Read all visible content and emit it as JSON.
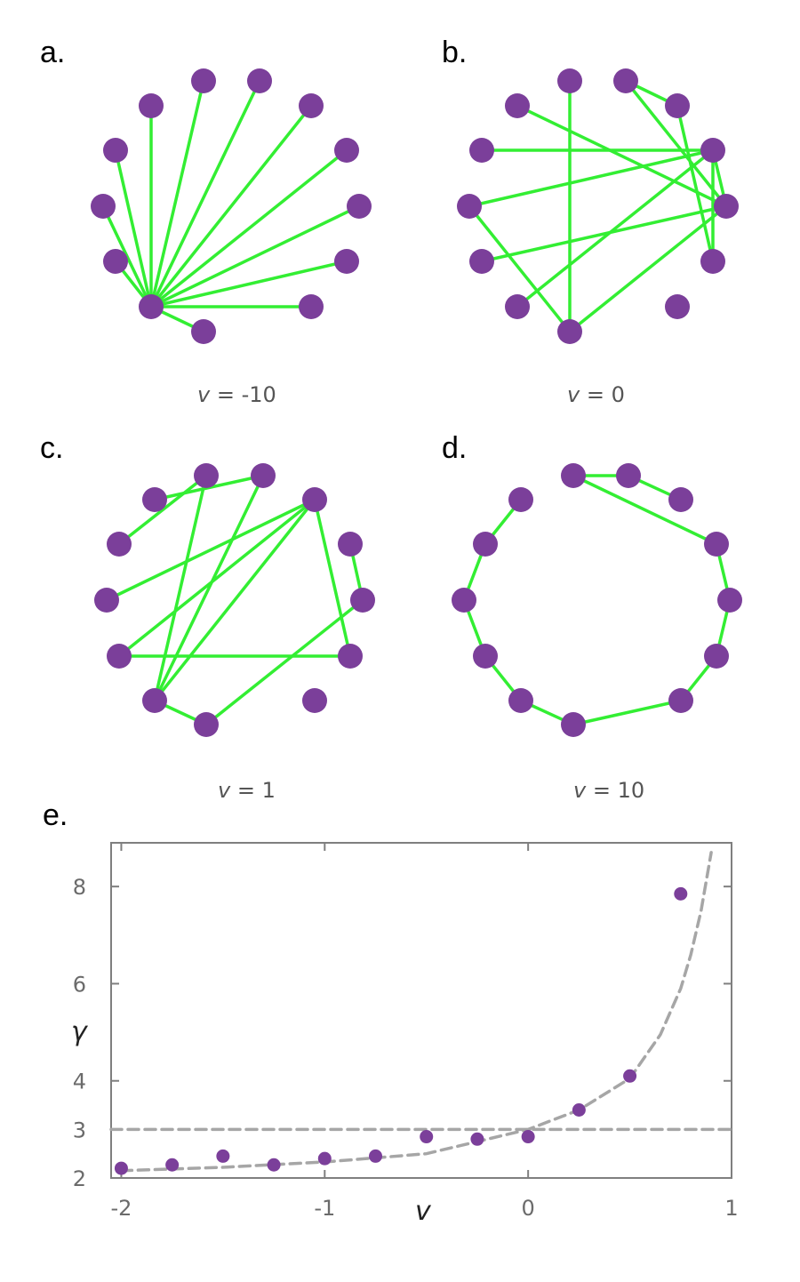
{
  "colors": {
    "node": "#7b3f9a",
    "edge": "#33ee33",
    "fit": "#a6a6a6",
    "axis": "#7f7f7f"
  },
  "panels": [
    {
      "letter": "a.",
      "v_label": "v",
      "v_value": "= -10",
      "edges": [
        [
          0,
          1
        ],
        [
          0,
          2
        ],
        [
          0,
          3
        ],
        [
          0,
          4
        ],
        [
          0,
          5
        ],
        [
          0,
          6
        ],
        [
          0,
          7
        ],
        [
          0,
          8
        ],
        [
          0,
          9
        ],
        [
          0,
          10
        ],
        [
          0,
          11
        ],
        [
          0,
          12
        ]
      ]
    },
    {
      "letter": "b.",
      "v_label": "v",
      "v_value": "= 0",
      "edges": [
        [
          10,
          2
        ],
        [
          10,
          11
        ],
        [
          10,
          12
        ],
        [
          11,
          3
        ],
        [
          11,
          6
        ],
        [
          11,
          8
        ],
        [
          11,
          1
        ],
        [
          10,
          5
        ],
        [
          10,
          4
        ],
        [
          1,
          4
        ],
        [
          1,
          7
        ],
        [
          12,
          9
        ],
        [
          9,
          8
        ]
      ]
    },
    {
      "letter": "c.",
      "v_label": "v",
      "v_value": "= 1",
      "edges": [
        [
          11,
          12
        ],
        [
          11,
          5
        ],
        [
          11,
          6
        ],
        [
          11,
          4
        ],
        [
          5,
          7
        ],
        [
          4,
          1
        ],
        [
          4,
          10
        ],
        [
          4,
          9
        ],
        [
          6,
          8
        ],
        [
          12,
          2
        ],
        [
          2,
          3
        ],
        [
          10,
          1
        ]
      ]
    },
    {
      "letter": "d.",
      "v_label": "v",
      "v_value": "= 10",
      "edges": [
        [
          2,
          1
        ],
        [
          1,
          0
        ],
        [
          0,
          3
        ],
        [
          3,
          4
        ],
        [
          4,
          5
        ],
        [
          5,
          6
        ],
        [
          6,
          7
        ],
        [
          7,
          8
        ],
        [
          8,
          9
        ],
        [
          9,
          10
        ],
        [
          10,
          11
        ],
        [
          11,
          12
        ]
      ]
    }
  ],
  "chart_data": {
    "type": "scatter",
    "panel_letter": "e.",
    "xlabel": "v",
    "ylabel": "γ",
    "xlim": [
      -2.05,
      1.0
    ],
    "ylim": [
      2.0,
      8.9
    ],
    "xticks": [
      -2,
      -1,
      0,
      1
    ],
    "xtick_labels": [
      "-2",
      "-1",
      "0",
      "1"
    ],
    "yticks": [
      2,
      3,
      4,
      6,
      8
    ],
    "ytick_labels": [
      "2",
      "3",
      "4",
      "6",
      "8"
    ],
    "grid": false,
    "series": [
      {
        "type": "scatter",
        "x": [
          -2.0,
          -1.75,
          -1.5,
          -1.25,
          -1.0,
          -0.75,
          -0.5,
          -0.25,
          0.0,
          0.25,
          0.5,
          0.75
        ],
        "y": [
          2.2,
          2.27,
          2.45,
          2.27,
          2.4,
          2.45,
          2.85,
          2.8,
          2.85,
          3.4,
          4.1,
          7.85
        ]
      },
      {
        "type": "line",
        "style": "dashed",
        "x": [
          -2.0,
          -1.5,
          -1.0,
          -0.5,
          0.0,
          0.25,
          0.5,
          0.65,
          0.75,
          0.8,
          0.85,
          0.9
        ],
        "y": [
          2.15,
          2.22,
          2.33,
          2.5,
          3.0,
          3.4,
          4.05,
          4.95,
          5.9,
          6.6,
          7.5,
          8.7
        ]
      },
      {
        "type": "line",
        "style": "dashed",
        "x": [
          -2.05,
          1.0
        ],
        "y": [
          3.0,
          3.0
        ]
      }
    ]
  }
}
